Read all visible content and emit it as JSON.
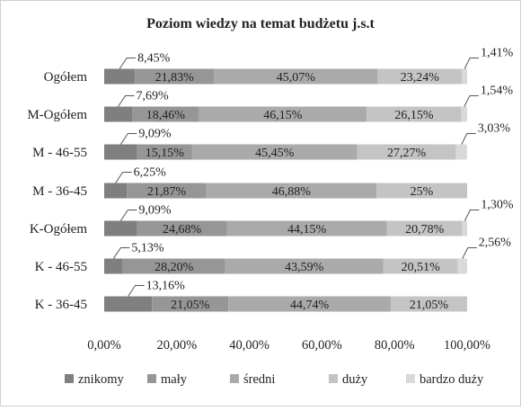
{
  "chart_data": {
    "type": "bar",
    "orientation": "horizontal",
    "stacked": true,
    "title": "Poziom wiedzy na temat budżetu j.s.t",
    "categories": [
      "Ogółem",
      "M-Ogółem",
      "M - 46-55",
      "M - 36-45",
      "K-Ogółem",
      "K - 46-55",
      "K - 36-45"
    ],
    "series": [
      {
        "name": "znikomy",
        "color": "#7f7f7f",
        "values": [
          8.45,
          7.69,
          9.09,
          6.25,
          9.09,
          5.13,
          13.16
        ],
        "labels": [
          "8,45%",
          "7,69%",
          "9,09%",
          "6,25%",
          "9,09%",
          "5,13%",
          "13,16%"
        ]
      },
      {
        "name": "mały",
        "color": "#969696",
        "values": [
          21.83,
          18.46,
          15.15,
          21.87,
          24.68,
          28.2,
          21.05
        ],
        "labels": [
          "21,83%",
          "18,46%",
          "15,15%",
          "21,87%",
          "24,68%",
          "28,20%",
          "21,05%"
        ]
      },
      {
        "name": "średni",
        "color": "#aaaaaa",
        "values": [
          45.07,
          46.15,
          45.45,
          46.88,
          44.15,
          43.59,
          44.74
        ],
        "labels": [
          "45,07%",
          "46,15%",
          "45,45%",
          "46,88%",
          "44,15%",
          "43,59%",
          "44,74%"
        ]
      },
      {
        "name": "duży",
        "color": "#c4c4c4",
        "values": [
          23.24,
          26.15,
          27.27,
          25.0,
          20.78,
          20.51,
          21.05
        ],
        "labels": [
          "23,24%",
          "26,15%",
          "27,27%",
          "25%",
          "20,78%",
          "20,51%",
          "21,05%"
        ]
      },
      {
        "name": "bardzo duży",
        "color": "#d9d9d9",
        "values": [
          1.41,
          1.54,
          3.03,
          0,
          1.3,
          2.56,
          0
        ],
        "labels": [
          "1,41%",
          "1,54%",
          "3,03%",
          "",
          "1,30%",
          "2,56%",
          ""
        ]
      }
    ],
    "xlim": [
      0,
      100
    ],
    "x_ticks": [
      "0,00%",
      "20,00%",
      "40,00%",
      "60,00%",
      "80,00%",
      "100,00%"
    ],
    "legend_position": "bottom",
    "grid": false
  }
}
